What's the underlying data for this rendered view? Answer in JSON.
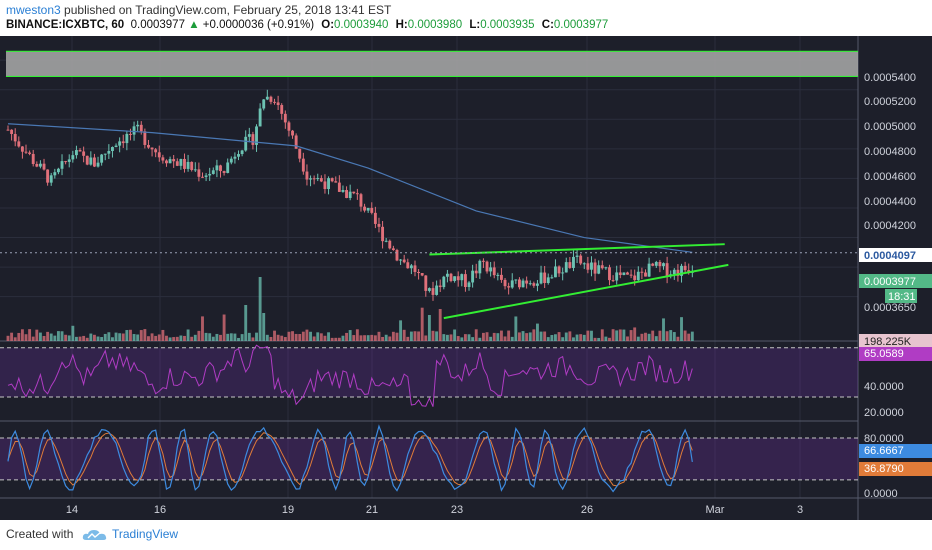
{
  "header": {
    "author": "mweston3",
    "published": "published on TradingView.com, February 25, 2018 13:41 EST",
    "symbol": "BINANCE:ICXBTC, 60",
    "last": "0.0003977",
    "change": "+0.0000036 (+0.91%)",
    "o_label": "O:",
    "o_value": "0.0003940",
    "h_label": "H:",
    "h_value": "0.0003980",
    "l_label": "L:",
    "l_value": "0.0003935",
    "c_label": "C:",
    "c_value": "0.0003977"
  },
  "colors": {
    "background": "#1d1f2a",
    "grid": "#2b2e3c",
    "candle_up": "#6cc3b3",
    "candle_down": "#e0707a",
    "ma": "#4a78b4",
    "trendline": "#33ee33",
    "resistance_band": "#a3a3a3",
    "rsi_line": "#b03cc4",
    "stoch_k": "#3d8be0",
    "stoch_d": "#e07b39"
  },
  "chart_data": {
    "type": "candlestick",
    "x_ticks": [
      "14",
      "16",
      "19",
      "21",
      "23",
      "26",
      "Mar",
      "3"
    ],
    "price_axis": {
      "ticks": [
        "0.0005400",
        "0.0005200",
        "0.0005000",
        "0.0004800",
        "0.0004600",
        "0.0004400",
        "0.0004200",
        "0.0003650"
      ],
      "ma_label": "0.0004097",
      "last_label": "0.0003977",
      "countdown": "18:31",
      "volume_label": "198.225K"
    },
    "price_key_points": [
      {
        "t": 0,
        "p": 0.000493
      },
      {
        "t": 6,
        "p": 0.000475
      },
      {
        "t": 12,
        "p": 0.000458
      },
      {
        "t": 18,
        "p": 0.000477
      },
      {
        "t": 24,
        "p": 0.00047
      },
      {
        "t": 30,
        "p": 0.000485
      },
      {
        "t": 36,
        "p": 0.000492
      },
      {
        "t": 42,
        "p": 0.000476
      },
      {
        "t": 48,
        "p": 0.00047
      },
      {
        "t": 54,
        "p": 0.000463
      },
      {
        "t": 60,
        "p": 0.000466
      },
      {
        "t": 64,
        "p": 0.000481
      },
      {
        "t": 68,
        "p": 0.000487
      },
      {
        "t": 71,
        "p": 0.000515
      },
      {
        "t": 74,
        "p": 0.000515
      },
      {
        "t": 78,
        "p": 0.000493
      },
      {
        "t": 83,
        "p": 0.000463
      },
      {
        "t": 90,
        "p": 0.000455
      },
      {
        "t": 97,
        "p": 0.000447
      },
      {
        "t": 103,
        "p": 0.000425
      },
      {
        "t": 109,
        "p": 0.000405
      },
      {
        "t": 113,
        "p": 0.000398
      },
      {
        "t": 117,
        "p": 0.000382
      },
      {
        "t": 122,
        "p": 0.000395
      },
      {
        "t": 127,
        "p": 0.00039
      },
      {
        "t": 132,
        "p": 0.000403
      },
      {
        "t": 138,
        "p": 0.000386
      },
      {
        "t": 143,
        "p": 0.000391
      },
      {
        "t": 148,
        "p": 0.000392
      },
      {
        "t": 153,
        "p": 0.000398
      },
      {
        "t": 158,
        "p": 0.000404
      },
      {
        "t": 163,
        "p": 0.000398
      },
      {
        "t": 168,
        "p": 0.000395
      },
      {
        "t": 173,
        "p": 0.000392
      },
      {
        "t": 179,
        "p": 0.0004
      },
      {
        "t": 185,
        "p": 0.000397
      },
      {
        "t": 190,
        "p": 0.0004
      }
    ],
    "price_range": [
      0.00035,
      0.000555
    ],
    "resistance_band": [
      0.000529,
      0.000546
    ],
    "ma_series": [
      {
        "t": 0,
        "p": 0.000497
      },
      {
        "t": 40,
        "p": 0.000491
      },
      {
        "t": 80,
        "p": 0.000482
      },
      {
        "t": 100,
        "p": 0.000467
      },
      {
        "t": 130,
        "p": 0.000438
      },
      {
        "t": 160,
        "p": 0.00042
      },
      {
        "t": 190,
        "p": 0.00041
      }
    ],
    "trendlines": [
      {
        "t1": 117,
        "p1": 0.0004085,
        "t2": 199,
        "p2": 0.0004155
      },
      {
        "t1": 121,
        "p1": 0.0003655,
        "t2": 200,
        "p2": 0.0004015
      }
    ],
    "rsi": {
      "labels": [
        "65.0589",
        "40.0000",
        "20.0000"
      ],
      "range": [
        13,
        73
      ],
      "levels": [
        70,
        30
      ]
    },
    "stoch": {
      "labels": [
        "80.0000",
        "66.6667",
        "36.8790",
        "0.0000"
      ],
      "range": [
        -6,
        100
      ],
      "levels": [
        80,
        20
      ]
    }
  },
  "footer": {
    "created_with": "Created with",
    "brand": "TradingView"
  }
}
